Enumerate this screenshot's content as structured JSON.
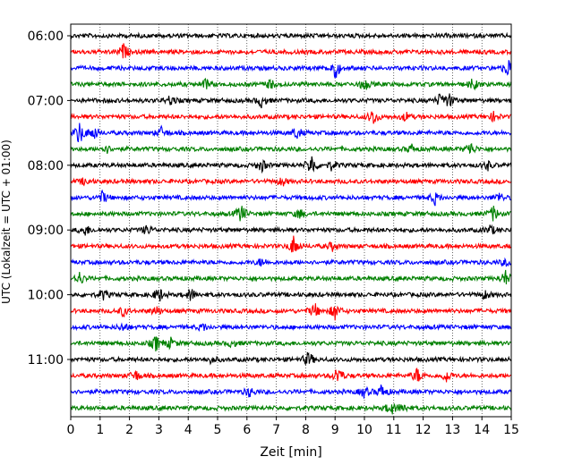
{
  "chart_data": {
    "type": "line",
    "title": "",
    "xlabel": "Zeit  [min]",
    "ylabel": "UTC (Lokalzeit = UTC + 01:00)",
    "xlim": [
      0,
      15
    ],
    "x_ticks": [
      "0",
      "1",
      "2",
      "3",
      "4",
      "5",
      "6",
      "7",
      "8",
      "9",
      "10",
      "11",
      "12",
      "13",
      "14",
      "15"
    ],
    "y_tick_labels": [
      "06:00",
      "07:00",
      "08:00",
      "09:00",
      "10:00",
      "11:00"
    ],
    "grid": "vertical dotted at each minute",
    "trace_minutes": 15,
    "color_cycle": [
      "#000000",
      "#ff0000",
      "#0000ff",
      "#008000"
    ],
    "series": [
      {
        "start": "06:00",
        "color": "#000000",
        "events": []
      },
      {
        "start": "06:15",
        "color": "#ff0000",
        "events": [
          [
            1.8,
            0.55
          ]
        ]
      },
      {
        "start": "06:30",
        "color": "#0000ff",
        "events": [
          [
            9.0,
            0.8
          ],
          [
            14.9,
            0.7
          ]
        ]
      },
      {
        "start": "06:45",
        "color": "#008000",
        "events": [
          [
            4.6,
            0.35
          ],
          [
            6.8,
            0.35
          ],
          [
            10.0,
            0.45
          ],
          [
            13.7,
            0.4
          ]
        ]
      },
      {
        "start": "07:00",
        "color": "#000000",
        "events": [
          [
            3.4,
            0.35
          ],
          [
            6.5,
            0.45
          ],
          [
            12.6,
            0.55
          ],
          [
            12.9,
            0.4
          ]
        ]
      },
      {
        "start": "07:15",
        "color": "#ff0000",
        "events": [
          [
            10.3,
            0.6
          ],
          [
            11.4,
            0.3
          ],
          [
            14.4,
            0.3
          ]
        ]
      },
      {
        "start": "07:30",
        "color": "#0000ff",
        "events": [
          [
            0.3,
            0.85
          ],
          [
            0.8,
            0.5
          ],
          [
            3.1,
            0.4
          ],
          [
            7.7,
            0.45
          ]
        ]
      },
      {
        "start": "07:45",
        "color": "#008000",
        "events": [
          [
            1.2,
            0.3
          ],
          [
            11.6,
            0.3
          ],
          [
            13.6,
            0.5
          ]
        ]
      },
      {
        "start": "08:00",
        "color": "#000000",
        "events": [
          [
            6.5,
            0.45
          ],
          [
            8.2,
            0.85
          ],
          [
            8.9,
            0.35
          ],
          [
            14.2,
            0.3
          ]
        ]
      },
      {
        "start": "08:15",
        "color": "#ff0000",
        "events": [
          [
            0.5,
            0.3
          ],
          [
            7.2,
            0.3
          ]
        ]
      },
      {
        "start": "08:30",
        "color": "#0000ff",
        "events": [
          [
            1.1,
            0.45
          ],
          [
            12.4,
            0.45
          ],
          [
            14.6,
            0.35
          ]
        ]
      },
      {
        "start": "08:45",
        "color": "#008000",
        "events": [
          [
            5.8,
            0.7
          ],
          [
            7.8,
            0.35
          ],
          [
            14.4,
            0.55
          ]
        ]
      },
      {
        "start": "09:00",
        "color": "#000000",
        "events": [
          [
            0.5,
            0.4
          ],
          [
            2.6,
            0.35
          ],
          [
            14.3,
            0.35
          ]
        ]
      },
      {
        "start": "09:15",
        "color": "#ff0000",
        "events": [
          [
            7.6,
            0.75
          ],
          [
            8.9,
            0.3
          ]
        ]
      },
      {
        "start": "09:30",
        "color": "#0000ff",
        "events": [
          [
            6.5,
            0.3
          ],
          [
            14.8,
            0.25
          ]
        ]
      },
      {
        "start": "09:45",
        "color": "#008000",
        "events": [
          [
            0.3,
            0.45
          ],
          [
            14.8,
            0.55
          ]
        ]
      },
      {
        "start": "10:00",
        "color": "#000000",
        "events": [
          [
            1.1,
            0.35
          ],
          [
            3.0,
            0.55
          ],
          [
            4.1,
            0.45
          ],
          [
            14.1,
            0.3
          ]
        ]
      },
      {
        "start": "10:15",
        "color": "#ff0000",
        "events": [
          [
            1.8,
            0.35
          ],
          [
            2.9,
            0.35
          ],
          [
            8.3,
            0.55
          ],
          [
            9.0,
            0.6
          ]
        ]
      },
      {
        "start": "10:30",
        "color": "#0000ff",
        "events": [
          [
            1.8,
            0.3
          ],
          [
            4.5,
            0.25
          ]
        ]
      },
      {
        "start": "10:45",
        "color": "#008000",
        "events": [
          [
            2.9,
            0.55
          ],
          [
            3.4,
            0.35
          ],
          [
            5.5,
            0.25
          ]
        ]
      },
      {
        "start": "11:00",
        "color": "#000000",
        "events": [
          [
            8.1,
            0.55
          ],
          [
            4.8,
            0.25
          ]
        ]
      },
      {
        "start": "11:15",
        "color": "#ff0000",
        "events": [
          [
            2.2,
            0.4
          ],
          [
            9.1,
            0.7
          ],
          [
            11.8,
            0.55
          ],
          [
            12.8,
            0.45
          ]
        ]
      },
      {
        "start": "11:30",
        "color": "#0000ff",
        "events": [
          [
            6.1,
            0.35
          ],
          [
            10.0,
            0.4
          ],
          [
            10.6,
            0.55
          ]
        ]
      },
      {
        "start": "11:45",
        "color": "#008000",
        "events": [
          [
            10.9,
            0.5
          ],
          [
            11.3,
            0.35
          ]
        ]
      }
    ]
  }
}
